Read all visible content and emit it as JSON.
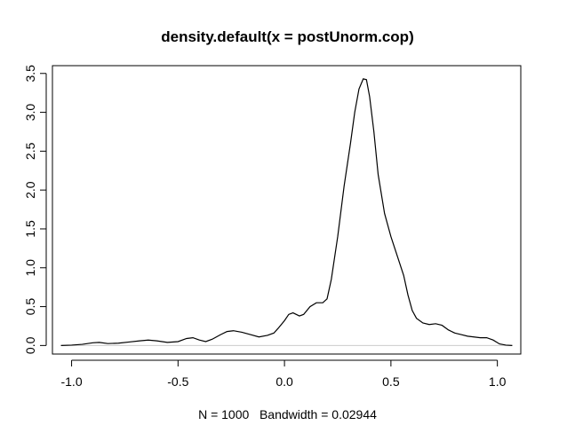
{
  "chart_data": {
    "type": "line",
    "title": "density.default(x = postUnorm.cop)",
    "xlabel": "N = 1000   Bandwidth = 0.02944",
    "ylabel": "",
    "xlim": [
      -1.09,
      1.11
    ],
    "ylim": [
      -0.11,
      3.6
    ],
    "x_ticks": [
      -1.0,
      -0.5,
      0.0,
      0.5,
      1.0
    ],
    "x_tick_labels": [
      "-1.0",
      "-0.5",
      "0.0",
      "0.5",
      "1.0"
    ],
    "y_ticks": [
      0.0,
      0.5,
      1.0,
      1.5,
      2.0,
      2.5,
      3.0,
      3.5
    ],
    "y_tick_labels": [
      "0.0",
      "0.5",
      "1.0",
      "1.5",
      "2.0",
      "2.5",
      "3.0",
      "3.5"
    ],
    "grid": false,
    "legend": "none",
    "baseline": 0,
    "baseline_color": "#cccccc",
    "line_color": "#000000",
    "series": [
      {
        "points": [
          [
            -1.05,
            0.0
          ],
          [
            -1.0,
            0.005
          ],
          [
            -0.95,
            0.015
          ],
          [
            -0.9,
            0.035
          ],
          [
            -0.87,
            0.04
          ],
          [
            -0.83,
            0.025
          ],
          [
            -0.78,
            0.03
          ],
          [
            -0.73,
            0.045
          ],
          [
            -0.68,
            0.06
          ],
          [
            -0.64,
            0.07
          ],
          [
            -0.6,
            0.06
          ],
          [
            -0.55,
            0.04
          ],
          [
            -0.5,
            0.05
          ],
          [
            -0.46,
            0.09
          ],
          [
            -0.43,
            0.1
          ],
          [
            -0.4,
            0.07
          ],
          [
            -0.37,
            0.05
          ],
          [
            -0.34,
            0.08
          ],
          [
            -0.3,
            0.14
          ],
          [
            -0.27,
            0.18
          ],
          [
            -0.24,
            0.19
          ],
          [
            -0.2,
            0.17
          ],
          [
            -0.16,
            0.14
          ],
          [
            -0.12,
            0.11
          ],
          [
            -0.08,
            0.13
          ],
          [
            -0.05,
            0.16
          ],
          [
            -0.03,
            0.22
          ],
          [
            0.0,
            0.32
          ],
          [
            0.02,
            0.4
          ],
          [
            0.04,
            0.42
          ],
          [
            0.07,
            0.38
          ],
          [
            0.09,
            0.4
          ],
          [
            0.12,
            0.5
          ],
          [
            0.15,
            0.55
          ],
          [
            0.18,
            0.55
          ],
          [
            0.2,
            0.6
          ],
          [
            0.22,
            0.85
          ],
          [
            0.25,
            1.4
          ],
          [
            0.28,
            2.05
          ],
          [
            0.31,
            2.6
          ],
          [
            0.33,
            3.0
          ],
          [
            0.35,
            3.3
          ],
          [
            0.37,
            3.43
          ],
          [
            0.385,
            3.42
          ],
          [
            0.4,
            3.2
          ],
          [
            0.42,
            2.75
          ],
          [
            0.44,
            2.2
          ],
          [
            0.47,
            1.7
          ],
          [
            0.5,
            1.4
          ],
          [
            0.53,
            1.15
          ],
          [
            0.56,
            0.9
          ],
          [
            0.58,
            0.65
          ],
          [
            0.6,
            0.45
          ],
          [
            0.62,
            0.35
          ],
          [
            0.65,
            0.29
          ],
          [
            0.68,
            0.27
          ],
          [
            0.71,
            0.28
          ],
          [
            0.74,
            0.26
          ],
          [
            0.77,
            0.2
          ],
          [
            0.8,
            0.16
          ],
          [
            0.83,
            0.14
          ],
          [
            0.86,
            0.12
          ],
          [
            0.89,
            0.11
          ],
          [
            0.92,
            0.1
          ],
          [
            0.95,
            0.1
          ],
          [
            0.98,
            0.07
          ],
          [
            1.01,
            0.02
          ],
          [
            1.04,
            0.005
          ],
          [
            1.07,
            0.0
          ]
        ]
      }
    ]
  }
}
